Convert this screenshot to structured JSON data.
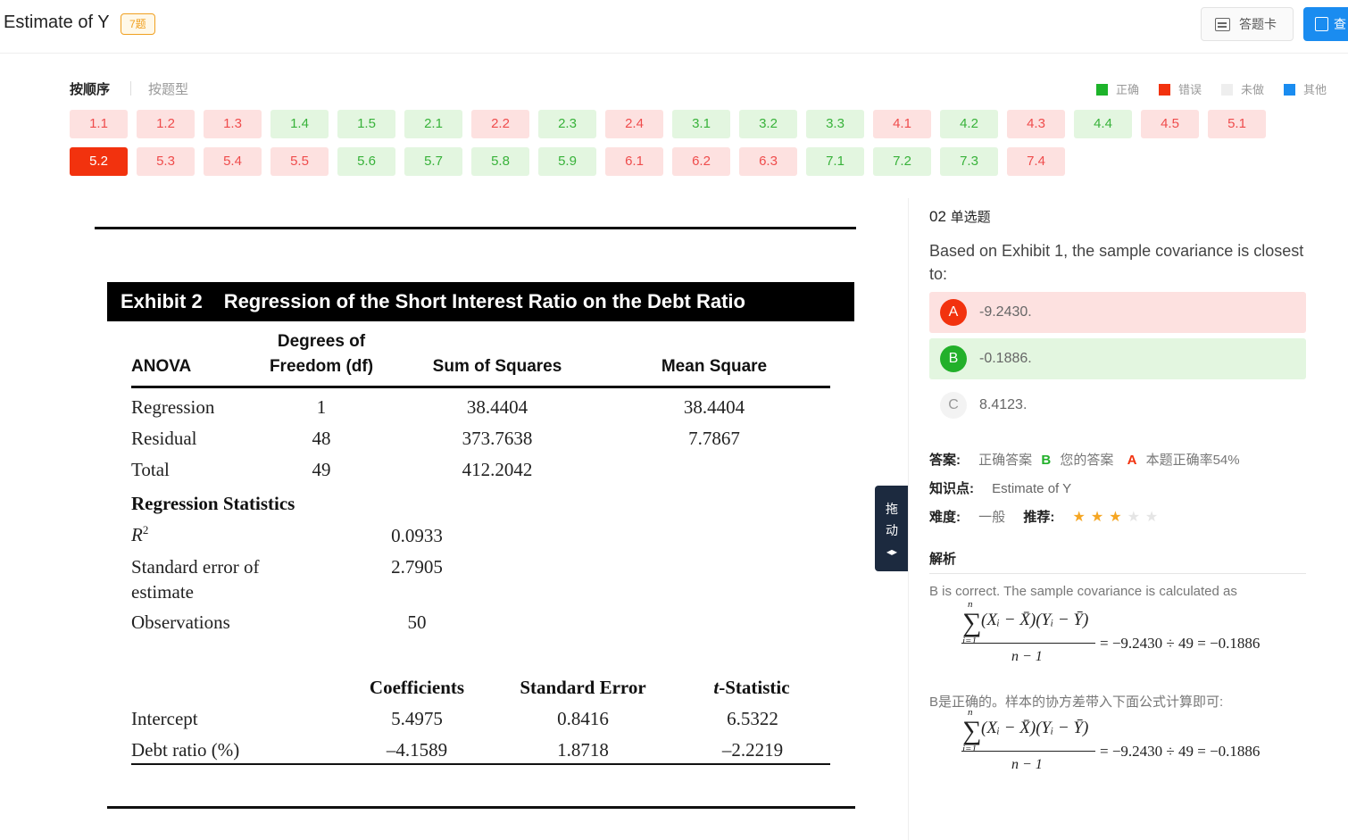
{
  "header": {
    "title": "Estimate of Y",
    "count_badge": "7题",
    "answer_card_label": "答题卡",
    "view_label": "查"
  },
  "tabs": {
    "by_order": "按顺序",
    "by_type": "按题型"
  },
  "legend": {
    "items": [
      {
        "label": "正确",
        "color": "#1db32a"
      },
      {
        "label": "错误",
        "color": "#f2320e"
      },
      {
        "label": "未做",
        "color": "#eeeeee"
      },
      {
        "label": "其他",
        "color": "#1a8cf0"
      }
    ]
  },
  "questions": {
    "row1": [
      {
        "label": "1.1",
        "status": "red"
      },
      {
        "label": "1.2",
        "status": "red"
      },
      {
        "label": "1.3",
        "status": "red"
      },
      {
        "label": "1.4",
        "status": "green"
      },
      {
        "label": "1.5",
        "status": "green"
      },
      {
        "label": "2.1",
        "status": "green"
      },
      {
        "label": "2.2",
        "status": "red"
      },
      {
        "label": "2.3",
        "status": "green"
      },
      {
        "label": "2.4",
        "status": "red"
      },
      {
        "label": "3.1",
        "status": "green"
      },
      {
        "label": "3.2",
        "status": "green"
      },
      {
        "label": "3.3",
        "status": "green"
      },
      {
        "label": "4.1",
        "status": "red"
      },
      {
        "label": "4.2",
        "status": "green"
      },
      {
        "label": "4.3",
        "status": "red"
      },
      {
        "label": "4.4",
        "status": "green"
      },
      {
        "label": "4.5",
        "status": "red"
      },
      {
        "label": "5.1",
        "status": "red"
      }
    ],
    "row2": [
      {
        "label": "5.2",
        "status": "current"
      },
      {
        "label": "5.3",
        "status": "red"
      },
      {
        "label": "5.4",
        "status": "red"
      },
      {
        "label": "5.5",
        "status": "red"
      },
      {
        "label": "5.6",
        "status": "green"
      },
      {
        "label": "5.7",
        "status": "green"
      },
      {
        "label": "5.8",
        "status": "green"
      },
      {
        "label": "5.9",
        "status": "green"
      },
      {
        "label": "6.1",
        "status": "red"
      },
      {
        "label": "6.2",
        "status": "red"
      },
      {
        "label": "6.3",
        "status": "red"
      },
      {
        "label": "7.1",
        "status": "green"
      },
      {
        "label": "7.2",
        "status": "green"
      },
      {
        "label": "7.3",
        "status": "green"
      },
      {
        "label": "7.4",
        "status": "red"
      }
    ]
  },
  "exhibit": {
    "label": "Exhibit 2",
    "caption": "Regression of the Short Interest Ratio on the Debt Ratio",
    "anova_headers": {
      "anova": "ANOVA",
      "df_line1": "Degrees of",
      "df_line2": "Freedom (df)",
      "ss": "Sum of Squares",
      "ms": "Mean Square"
    },
    "anova_rows": [
      {
        "name": "Regression",
        "df": "1",
        "ss": "38.4404",
        "ms": "38.4404"
      },
      {
        "name": "Residual",
        "df": "48",
        "ss": "373.7638",
        "ms": "7.7867"
      },
      {
        "name": "Total",
        "df": "49",
        "ss": "412.2042",
        "ms": ""
      }
    ],
    "reg_stats_title": "Regression Statistics",
    "r2_label": "R",
    "r2_sup": "2",
    "r2_value": "0.0933",
    "se_label_line1": "Standard error of",
    "se_label_line2": "estimate",
    "se_value": "2.7905",
    "obs_label": "Observations",
    "obs_value": "50",
    "coef_headers": {
      "coef": "Coefficients",
      "se": "Standard Error",
      "t_italic": "t",
      "t_rest": "-Statistic"
    },
    "coef_rows": [
      {
        "name": "Intercept",
        "coef": "5.4975",
        "se": "0.8416",
        "t": "6.5322"
      },
      {
        "name": "Debt ratio (%)",
        "coef": "–4.1589",
        "se": "1.8718",
        "t": "–2.2219"
      }
    ]
  },
  "drag_handle": {
    "char1": "拖",
    "char2": "动",
    "arrows": "◂▸"
  },
  "question": {
    "number": "02",
    "type": "单选题",
    "text": "Based on Exhibit 1, the sample covariance is closest to:",
    "options": [
      {
        "letter": "A",
        "text": "-9.2430.",
        "state": "red"
      },
      {
        "letter": "B",
        "text": "-0.1886.",
        "state": "green"
      },
      {
        "letter": "C",
        "text": "8.4123.",
        "state": "plain"
      }
    ]
  },
  "answer_info": {
    "answer_label": "答案:",
    "correct_label": "正确答案",
    "correct_value": "B",
    "yours_label": "您的答案",
    "yours_value": "A",
    "rate_text": "本题正确率54%",
    "kp_label": "知识点:",
    "kp_value": "Estimate of Y",
    "difficulty_label": "难度:",
    "difficulty_value": "一般",
    "recommend_label": "推荐:",
    "stars_filled": 3,
    "stars_total": 5
  },
  "analysis": {
    "title": "解析",
    "en_text": "B is correct. The sample covariance is calculated as",
    "cn_text": "B是正确的。样本的协方差带入下面公式计算即可:",
    "formula_sigma": "∑",
    "formula_top": "n",
    "formula_bottom": "i=1",
    "formula_numerator": "(Xᵢ − X̄)(Yᵢ − Ȳ)",
    "formula_denominator": "n − 1",
    "formula_result": "= −9.2430 ÷ 49 = −0.1886"
  }
}
